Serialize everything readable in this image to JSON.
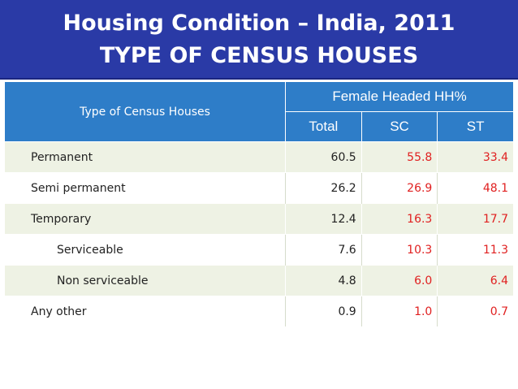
{
  "title": {
    "line1": "Housing Condition – India, 2011",
    "line2": "TYPE OF CENSUS HOUSES"
  },
  "table": {
    "row_header": "Type of Census Houses",
    "group_header": "Female Headed HH%",
    "columns": [
      "Total",
      "SC",
      "ST"
    ],
    "rows": [
      {
        "label": "Permanent",
        "indent": false,
        "total": "60.5",
        "sc": "55.8",
        "st": "33.4"
      },
      {
        "label": "Semi permanent",
        "indent": false,
        "total": "26.2",
        "sc": "26.9",
        "st": "48.1"
      },
      {
        "label": "Temporary",
        "indent": false,
        "total": "12.4",
        "sc": "16.3",
        "st": "17.7"
      },
      {
        "label": "Serviceable",
        "indent": true,
        "total": "7.6",
        "sc": "10.3",
        "st": "11.3"
      },
      {
        "label": "Non serviceable",
        "indent": true,
        "total": "4.8",
        "sc": "6.0",
        "st": "6.4"
      },
      {
        "label": "Any other",
        "indent": false,
        "total": "0.9",
        "sc": "1.0",
        "st": "0.7"
      }
    ]
  },
  "colors": {
    "title_band": "#2a3aa6",
    "header_blue": "#2e7dc8",
    "row_tint": "#eef2e4",
    "highlight_red": "#e02020"
  }
}
